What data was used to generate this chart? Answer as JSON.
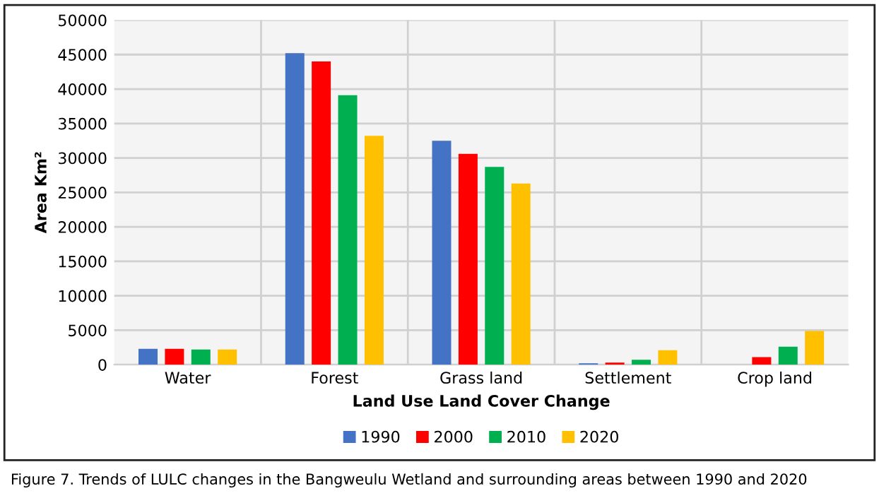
{
  "chart_data": {
    "type": "bar",
    "xlabel": "Land Use Land Cover Change",
    "ylabel": "Area Km²",
    "categories": [
      "Water",
      "Forest",
      "Grass land",
      "Settlement",
      "Crop land"
    ],
    "series": [
      {
        "name": "1990",
        "color": "#4472c4",
        "values": [
          2300,
          45200,
          32500,
          200,
          0
        ]
      },
      {
        "name": "2000",
        "color": "#ff0000",
        "values": [
          2300,
          44000,
          30600,
          300,
          1100
        ]
      },
      {
        "name": "2010",
        "color": "#00b050",
        "values": [
          2200,
          39100,
          28700,
          700,
          2600
        ]
      },
      {
        "name": "2020",
        "color": "#ffc000",
        "values": [
          2200,
          33200,
          26300,
          2100,
          4900
        ]
      }
    ],
    "ylim": [
      0,
      50000
    ],
    "yticks": [
      0,
      5000,
      10000,
      15000,
      20000,
      25000,
      30000,
      35000,
      40000,
      45000,
      50000
    ],
    "grid": true,
    "legend": "bottom",
    "annotations": [
      "Figure 7. Trends of LULC changes in the Bangweulu Wetland and surrounding areas between 1990 and 2020"
    ]
  }
}
